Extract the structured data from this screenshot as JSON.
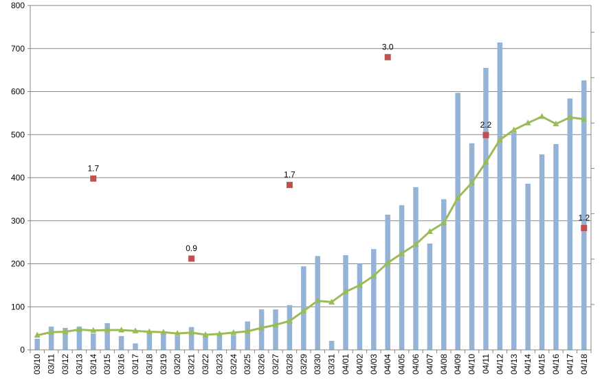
{
  "chart_data": {
    "type": "bar",
    "categories": [
      "03/10",
      "03/11",
      "03/12",
      "03/13",
      "03/14",
      "03/15",
      "03/16",
      "03/17",
      "03/18",
      "03/19",
      "03/20",
      "03/21",
      "03/22",
      "03/23",
      "03/24",
      "03/25",
      "03/26",
      "03/27",
      "03/28",
      "03/29",
      "03/30",
      "03/31",
      "04/01",
      "04/02",
      "04/03",
      "04/04",
      "04/05",
      "04/06",
      "04/07",
      "04/08",
      "04/09",
      "04/10",
      "04/11",
      "04/12",
      "04/13",
      "04/14",
      "04/15",
      "04/16",
      "04/17",
      "04/18"
    ],
    "series": [
      {
        "type": "bar",
        "color": "#95b3d7",
        "values": [
          26,
          54,
          51,
          54,
          38,
          62,
          32,
          15,
          38,
          38,
          32,
          53,
          33,
          34,
          34,
          66,
          94,
          94,
          104,
          194,
          218,
          21,
          220,
          200,
          234,
          314,
          336,
          378,
          247,
          350,
          597,
          480,
          655,
          714,
          505,
          386,
          454,
          478,
          584,
          626
        ]
      },
      {
        "type": "line",
        "color": "#9bbb59",
        "marker": "triangle",
        "values": [
          34,
          41,
          42,
          47,
          45,
          46,
          46,
          44,
          42,
          41,
          38,
          40,
          35,
          37,
          40,
          43,
          51,
          58,
          67,
          90,
          114,
          111,
          135,
          150,
          172,
          202,
          224,
          245,
          275,
          295,
          353,
          388,
          436,
          488,
          511,
          527,
          542,
          525,
          540,
          536
        ]
      },
      {
        "type": "point",
        "color": "#c0504d",
        "marker": "square",
        "points": [
          {
            "category": "03/14",
            "y": 398,
            "label": "1.7"
          },
          {
            "category": "03/21",
            "y": 212,
            "label": "0.9"
          },
          {
            "category": "03/28",
            "y": 383,
            "label": "1.7"
          },
          {
            "category": "04/04",
            "y": 680,
            "label": "3.0"
          },
          {
            "category": "04/11",
            "y": 499,
            "label": "2.2"
          },
          {
            "category": "04/18",
            "y": 283,
            "label": "1.2"
          }
        ]
      }
    ],
    "ylim": [
      0,
      800
    ],
    "yticks": [
      "0",
      "100",
      "200",
      "300",
      "400",
      "500",
      "600",
      "700",
      "800"
    ],
    "ytick_values": [
      0,
      100,
      200,
      300,
      400,
      500,
      600,
      700,
      800
    ],
    "grid": true,
    "secondary_axis": true,
    "title": "",
    "xlabel": "",
    "ylabel": ""
  }
}
